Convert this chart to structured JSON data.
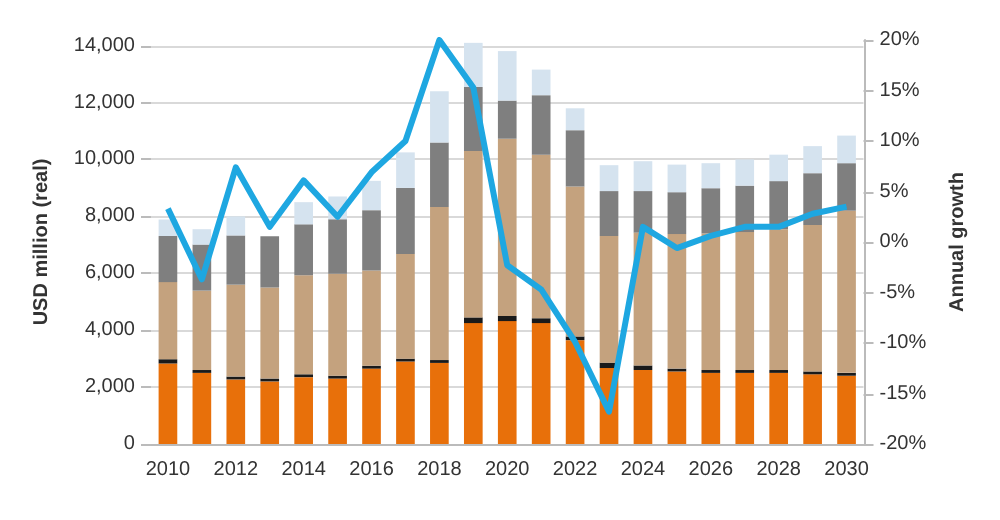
{
  "chart_data": {
    "type": "bar",
    "stacked": true,
    "ylabel": "USD million (real)",
    "y2label": "Annual growth",
    "categories": [
      "2010",
      null,
      "2012",
      null,
      "2014",
      null,
      "2016",
      null,
      "2018",
      null,
      "2020",
      null,
      "2022",
      null,
      "2024",
      null,
      "2026",
      null,
      "2028",
      null,
      "2030"
    ],
    "series": [
      {
        "color": "#e8700a",
        "values": [
          2830,
          2500,
          2270,
          2200,
          2350,
          2300,
          2650,
          2900,
          2850,
          4250,
          4320,
          4250,
          3650,
          2670,
          2600,
          2550,
          2500,
          2500,
          2500,
          2450,
          2400
        ]
      },
      {
        "color": "#1a1a1a",
        "values": [
          150,
          100,
          100,
          100,
          100,
          100,
          100,
          100,
          100,
          200,
          180,
          170,
          130,
          190,
          160,
          100,
          100,
          100,
          100,
          100,
          100
        ]
      },
      {
        "color": "#c4a27e",
        "values": [
          2710,
          2790,
          3230,
          3200,
          3480,
          3580,
          3350,
          3680,
          5380,
          5850,
          6230,
          5750,
          5270,
          4450,
          4670,
          4730,
          4800,
          4850,
          4950,
          5150,
          5700
        ]
      },
      {
        "color": "#7f7f7f",
        "values": [
          1620,
          1620,
          1730,
          1800,
          1790,
          1920,
          2120,
          2320,
          2270,
          2250,
          1340,
          2090,
          1980,
          1580,
          1460,
          1470,
          1590,
          1630,
          1690,
          1820,
          1670
        ]
      },
      {
        "color": "#d5e3ef",
        "values": [
          580,
          540,
          670,
          null,
          780,
          800,
          1030,
          1250,
          1800,
          1550,
          1740,
          900,
          770,
          910,
          1050,
          970,
          880,
          920,
          930,
          950,
          970
        ]
      },
      {
        "type": "line",
        "axis": "y2",
        "color": "#1ea7e1",
        "values": [
          3.3,
          -3.7,
          7.4,
          1.5,
          6.1,
          2.5,
          6.9,
          10.0,
          20.0,
          15.3,
          -2.3,
          -4.7,
          -9.9,
          -16.8,
          1.5,
          -0.6,
          0.6,
          1.5,
          1.5,
          2.8,
          3.5
        ]
      }
    ],
    "ylim": [
      0,
      14200
    ],
    "yticks": [
      0,
      {
        "value": 2000,
        "label": "2,000"
      },
      {
        "value": 4000,
        "label": "4,000"
      },
      {
        "value": 6000,
        "label": "6,000"
      },
      {
        "value": 8000,
        "label": "8,000"
      },
      {
        "value": 10000,
        "label": "10,000"
      },
      {
        "value": 12000,
        "label": "12,000"
      },
      {
        "value": 14000,
        "label": "14,000"
      }
    ],
    "y2lim": [
      -20,
      20
    ],
    "y2ticks": [
      {
        "value": -20,
        "label": "-20%"
      },
      {
        "value": -15,
        "label": "-15%"
      },
      {
        "value": -10,
        "label": "-10%"
      },
      {
        "value": -5,
        "label": "-5%"
      },
      {
        "value": 0,
        "label": "0%"
      },
      {
        "value": 5,
        "label": "5%"
      },
      {
        "value": 10,
        "label": "10%"
      },
      {
        "value": 15,
        "label": "15%"
      },
      {
        "value": 20,
        "label": "20%"
      }
    ],
    "grid": "y",
    "marker": "none",
    "line_style": "solid"
  }
}
